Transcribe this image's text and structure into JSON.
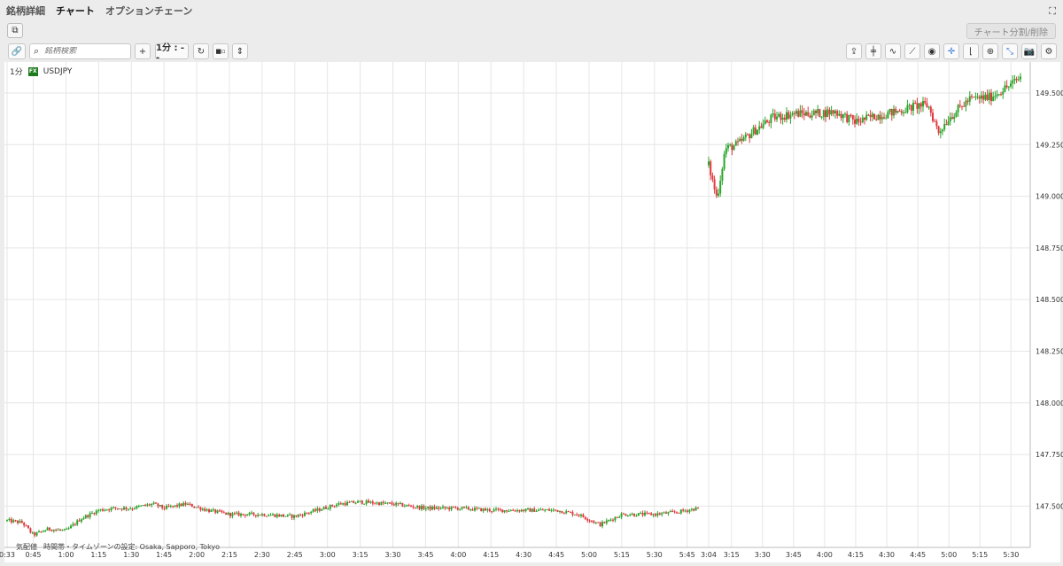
{
  "tabs": [
    "銘柄詳細",
    "チャート",
    "オプションチェーン"
  ],
  "active_tab": 1,
  "split_button": "チャート分割/削除",
  "toolbar": {
    "search_placeholder": "銘柄検索",
    "interval": "1分 : - -"
  },
  "symbol": {
    "interval": "1分",
    "badge": "FX",
    "name": "USDJPY"
  },
  "footer": {
    "delayed": "気配値",
    "timezone": "時間帯・タイムゾーンの設定: Osaka, Sapporo, Tokyo"
  },
  "chart_data": {
    "type": "candlestick",
    "symbol": "USDJPY",
    "interval": "1分",
    "ylim": [
      147.3,
      149.65
    ],
    "y_ticks": [
      "149.500",
      "149.250",
      "149.000",
      "148.750",
      "148.500",
      "148.250",
      "148.000",
      "147.750",
      "147.500"
    ],
    "x_ticks": [
      "0:33",
      "0:45",
      "1:00",
      "1:15",
      "1:30",
      "1:45",
      "2:00",
      "2:15",
      "2:30",
      "2:45",
      "3:00",
      "3:15",
      "3:30",
      "3:45",
      "4:00",
      "4:15",
      "4:30",
      "4:45",
      "5:00",
      "5:15",
      "5:30",
      "5:45",
      "3:04",
      "3:15",
      "3:30",
      "3:45",
      "4:00",
      "4:15",
      "4:30",
      "4:45",
      "5:00",
      "5:15",
      "5:30"
    ],
    "up_color": "#2aa52a",
    "down_color": "#e0393e",
    "segment1": {
      "x_start": "0:33",
      "x_end": "5:50",
      "close_path": [
        [
          "0:33",
          147.43
        ],
        [
          "0:40",
          147.42
        ],
        [
          "0:45",
          147.36
        ],
        [
          "0:52",
          147.39
        ],
        [
          "1:00",
          147.38
        ],
        [
          "1:07",
          147.44
        ],
        [
          "1:15",
          147.48
        ],
        [
          "1:22",
          147.49
        ],
        [
          "1:30",
          147.49
        ],
        [
          "1:40",
          147.51
        ],
        [
          "1:45",
          147.49
        ],
        [
          "1:55",
          147.51
        ],
        [
          "2:05",
          147.48
        ],
        [
          "2:15",
          147.46
        ],
        [
          "2:30",
          147.46
        ],
        [
          "2:45",
          147.45
        ],
        [
          "2:55",
          147.48
        ],
        [
          "3:05",
          147.51
        ],
        [
          "3:15",
          147.52
        ],
        [
          "3:30",
          147.51
        ],
        [
          "3:45",
          147.49
        ],
        [
          "4:00",
          147.49
        ],
        [
          "4:15",
          147.48
        ],
        [
          "4:30",
          147.48
        ],
        [
          "4:45",
          147.48
        ],
        [
          "4:55",
          147.46
        ],
        [
          "5:05",
          147.41
        ],
        [
          "5:15",
          147.46
        ],
        [
          "5:30",
          147.46
        ],
        [
          "5:40",
          147.47
        ],
        [
          "5:50",
          147.49
        ]
      ]
    },
    "segment2": {
      "x_start": "3:04",
      "x_end": "5:35",
      "close_path": [
        [
          "3:04",
          149.15
        ],
        [
          "3:08",
          148.99
        ],
        [
          "3:12",
          149.23
        ],
        [
          "3:18",
          149.25
        ],
        [
          "3:25",
          149.31
        ],
        [
          "3:35",
          149.38
        ],
        [
          "3:45",
          149.4
        ],
        [
          "3:55",
          149.4
        ],
        [
          "4:05",
          149.41
        ],
        [
          "4:15",
          149.36
        ],
        [
          "4:25",
          149.39
        ],
        [
          "4:35",
          149.41
        ],
        [
          "4:45",
          149.44
        ],
        [
          "4:50",
          149.44
        ],
        [
          "4:55",
          149.31
        ],
        [
          "5:00",
          149.38
        ],
        [
          "5:10",
          149.47
        ],
        [
          "5:20",
          149.48
        ],
        [
          "5:30",
          149.54
        ],
        [
          "5:35",
          149.58
        ]
      ]
    }
  }
}
